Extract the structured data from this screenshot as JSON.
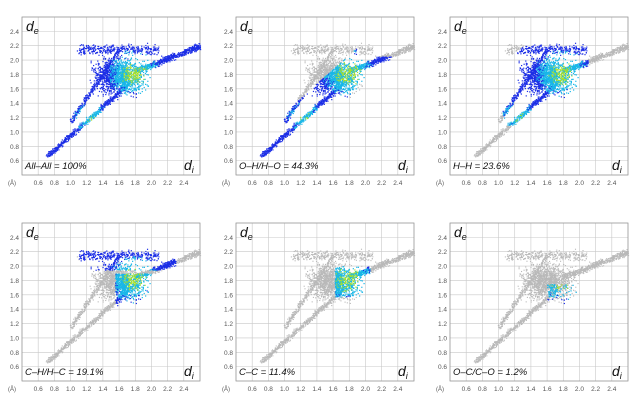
{
  "chart_data": [
    {
      "type": "heatmap",
      "title": "",
      "label": "All–All = 100%",
      "xlabel_main": "d",
      "xlabel_sub": "i",
      "ylabel_main": "d",
      "ylabel_sub": "e",
      "x_unit": "(Å)",
      "xlim": [
        0.4,
        2.6
      ],
      "ylim": [
        0.4,
        2.6
      ],
      "xticks": [
        "0.6",
        "0.8",
        "1.0",
        "1.2",
        "1.4",
        "1.6",
        "1.8",
        "2.0",
        "2.2",
        "2.4"
      ],
      "yticks": [
        "0.6",
        "0.8",
        "1.0",
        "1.2",
        "1.4",
        "1.6",
        "1.8",
        "2.0",
        "2.2",
        "2.4"
      ],
      "grid": true
    },
    {
      "type": "heatmap",
      "title": "",
      "label": "O–H/H–O = 44.3%",
      "xlabel_main": "d",
      "xlabel_sub": "i",
      "ylabel_main": "d",
      "ylabel_sub": "e",
      "x_unit": "(Å)",
      "xlim": [
        0.4,
        2.6
      ],
      "ylim": [
        0.4,
        2.6
      ],
      "xticks": [
        "0.6",
        "0.8",
        "1.0",
        "1.2",
        "1.4",
        "1.6",
        "1.8",
        "2.0",
        "2.2",
        "2.4"
      ],
      "yticks": [
        "0.6",
        "0.8",
        "1.0",
        "1.2",
        "1.4",
        "1.6",
        "1.8",
        "2.0",
        "2.2",
        "2.4"
      ],
      "grid": true
    },
    {
      "type": "heatmap",
      "title": "",
      "label": "H–H = 23.6%",
      "xlabel_main": "d",
      "xlabel_sub": "i",
      "ylabel_main": "d",
      "ylabel_sub": "e",
      "x_unit": "(Å)",
      "xlim": [
        0.4,
        2.6
      ],
      "ylim": [
        0.4,
        2.6
      ],
      "xticks": [
        "0.6",
        "0.8",
        "1.0",
        "1.2",
        "1.4",
        "1.6",
        "1.8",
        "2.0",
        "2.2",
        "2.4"
      ],
      "yticks": [
        "0.6",
        "0.8",
        "1.0",
        "1.2",
        "1.4",
        "1.6",
        "1.8",
        "2.0",
        "2.2",
        "2.4"
      ],
      "grid": true
    },
    {
      "type": "heatmap",
      "title": "",
      "label": "C–H/H–C = 19.1%",
      "xlabel_main": "d",
      "xlabel_sub": "i",
      "ylabel_main": "d",
      "ylabel_sub": "e",
      "x_unit": "(Å)",
      "xlim": [
        0.4,
        2.6
      ],
      "ylim": [
        0.4,
        2.6
      ],
      "xticks": [
        "0.6",
        "0.8",
        "1.0",
        "1.2",
        "1.4",
        "1.6",
        "1.8",
        "2.0",
        "2.2",
        "2.4"
      ],
      "yticks": [
        "0.6",
        "0.8",
        "1.0",
        "1.2",
        "1.4",
        "1.6",
        "1.8",
        "2.0",
        "2.2",
        "2.4"
      ],
      "grid": true
    },
    {
      "type": "heatmap",
      "title": "",
      "label": "C–C = 11.4%",
      "xlabel_main": "d",
      "xlabel_sub": "i",
      "ylabel_main": "d",
      "ylabel_sub": "e",
      "x_unit": "(Å)",
      "xlim": [
        0.4,
        2.6
      ],
      "ylim": [
        0.4,
        2.6
      ],
      "xticks": [
        "0.6",
        "0.8",
        "1.0",
        "1.2",
        "1.4",
        "1.6",
        "1.8",
        "2.0",
        "2.2",
        "2.4"
      ],
      "yticks": [
        "0.6",
        "0.8",
        "1.0",
        "1.2",
        "1.4",
        "1.6",
        "1.8",
        "2.0",
        "2.2",
        "2.4"
      ],
      "grid": true
    },
    {
      "type": "heatmap",
      "title": "",
      "label": "O–C/C–O = 1.2%",
      "xlabel_main": "d",
      "xlabel_sub": "i",
      "ylabel_main": "d",
      "ylabel_sub": "e",
      "x_unit": "(Å)",
      "xlim": [
        0.4,
        2.6
      ],
      "ylim": [
        0.4,
        2.6
      ],
      "xticks": [
        "0.6",
        "0.8",
        "1.0",
        "1.2",
        "1.4",
        "1.6",
        "1.8",
        "2.0",
        "2.2",
        "2.4"
      ],
      "yticks": [
        "0.6",
        "0.8",
        "1.0",
        "1.2",
        "1.4",
        "1.6",
        "1.8",
        "2.0",
        "2.2",
        "2.4"
      ],
      "grid": true
    }
  ],
  "colors": {
    "grid": "#c8c8c8",
    "frame": "#9a9a9a",
    "background_points": "#b9b9b9",
    "low_density": "#1c2ee6",
    "mid_density": "#19b7e8",
    "high_density": "#a6e02a"
  }
}
